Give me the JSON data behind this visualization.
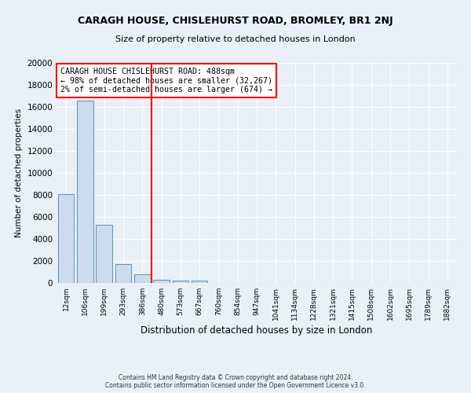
{
  "title": "CARAGH HOUSE, CHISLEHURST ROAD, BROMLEY, BR1 2NJ",
  "subtitle": "Size of property relative to detached houses in London",
  "xlabel": "Distribution of detached houses by size in London",
  "ylabel": "Number of detached properties",
  "bar_categories": [
    "12sqm",
    "106sqm",
    "199sqm",
    "293sqm",
    "386sqm",
    "480sqm",
    "573sqm",
    "667sqm",
    "760sqm",
    "854sqm",
    "947sqm",
    "1041sqm",
    "1134sqm",
    "1228sqm",
    "1321sqm",
    "1415sqm",
    "1508sqm",
    "1602sqm",
    "1695sqm",
    "1789sqm",
    "1882sqm"
  ],
  "bar_values": [
    8100,
    16600,
    5300,
    1750,
    800,
    300,
    200,
    200,
    0,
    0,
    0,
    0,
    0,
    0,
    0,
    0,
    0,
    0,
    0,
    0,
    0
  ],
  "bar_color": "#ccdcee",
  "bar_edge_color": "#6699bb",
  "vline_color": "red",
  "vline_x": 4.5,
  "annotation_title": "CARAGH HOUSE CHISLEHURST ROAD: 488sqm",
  "annotation_line1": "← 98% of detached houses are smaller (32,267)",
  "annotation_line2": "2% of semi-detached houses are larger (674) →",
  "annotation_box_color": "white",
  "annotation_box_edge_color": "red",
  "ylim": [
    0,
    20000
  ],
  "yticks": [
    0,
    2000,
    4000,
    6000,
    8000,
    10000,
    12000,
    14000,
    16000,
    18000,
    20000
  ],
  "bg_color": "#eaf0f7",
  "plot_bg_color": "#eaf0f7",
  "footer_line1": "Contains HM Land Registry data © Crown copyright and database right 2024.",
  "footer_line2": "Contains public sector information licensed under the Open Government Licence v3.0."
}
